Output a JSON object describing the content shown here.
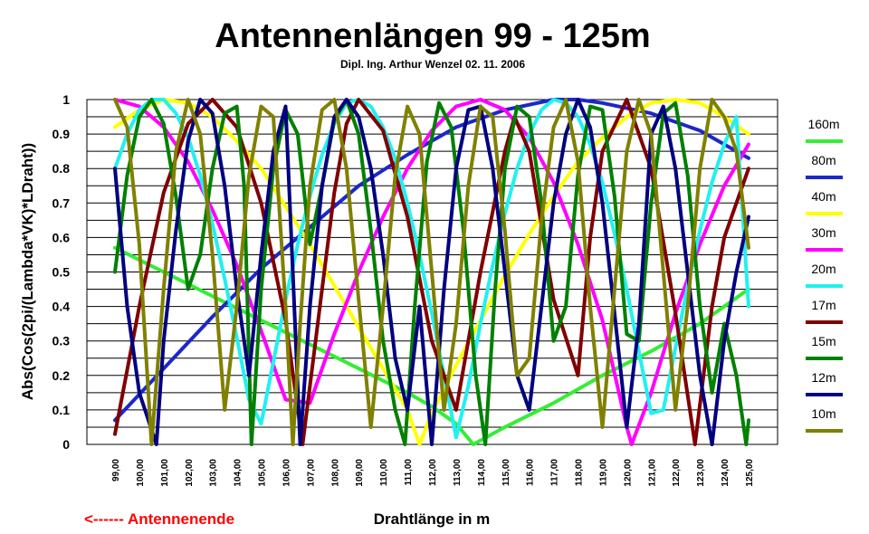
{
  "chart_data": {
    "type": "line",
    "title": "Antennenlängen 99 - 125m",
    "subtitle": "Dipl. Ing. Arthur Wenzel  02. 11. 2006",
    "xlabel": "Drahtlänge in m",
    "ylabel": "Abs(Cos(2pi/(Lambda*VK)*LDraht))",
    "annotation": "<------  Antennenende",
    "annotation_color": "#ff0000",
    "xlim": [
      99,
      125
    ],
    "ylim": [
      0,
      1
    ],
    "grid": true,
    "legend_position": "right",
    "x_tick_labels": [
      "99,00",
      "100,00",
      "101,00",
      "102,00",
      "103,00",
      "104,00",
      "105,00",
      "106,00",
      "107,00",
      "108,00",
      "109,00",
      "110,00",
      "111,00",
      "112,00",
      "113,00",
      "114,00",
      "115,00",
      "116,00",
      "117,00",
      "118,00",
      "119,00",
      "120,00",
      "121,00",
      "122,00",
      "123,00",
      "124,00",
      "125,00"
    ],
    "y_tick_labels": [
      "0",
      "0.1",
      "0.2",
      "0.3",
      "0.4",
      "0.5",
      "0.6",
      "0.7",
      "0.8",
      "0.9",
      "1"
    ],
    "series": [
      {
        "name": "160m",
        "color": "#33ee33",
        "x": [
          99,
          101,
          103,
          105,
          107,
          109,
          111,
          112,
          113,
          113.7,
          115,
          117,
          119,
          121,
          123,
          125
        ],
        "y": [
          0.57,
          0.5,
          0.43,
          0.36,
          0.29,
          0.22,
          0.15,
          0.11,
          0.06,
          0.0,
          0.05,
          0.12,
          0.2,
          0.27,
          0.35,
          0.45
        ]
      },
      {
        "name": "80m",
        "color": "#1c28c8",
        "x": [
          99,
          101,
          103,
          105,
          107,
          109,
          111,
          113,
          115,
          117,
          118,
          119,
          121,
          123,
          125
        ],
        "y": [
          0.07,
          0.22,
          0.37,
          0.51,
          0.63,
          0.75,
          0.84,
          0.92,
          0.97,
          1.0,
          1.0,
          0.99,
          0.96,
          0.91,
          0.83
        ]
      },
      {
        "name": "40m",
        "color": "#ffff00",
        "x": [
          99,
          100,
          101,
          102,
          103,
          104,
          105,
          106,
          107,
          108,
          109,
          110,
          111,
          111.5,
          112,
          113,
          114,
          115,
          116,
          117,
          118,
          119,
          120,
          121,
          122,
          123,
          124,
          125
        ],
        "y": [
          0.92,
          0.97,
          1.0,
          0.99,
          0.95,
          0.88,
          0.8,
          0.69,
          0.58,
          0.46,
          0.34,
          0.22,
          0.1,
          0.0,
          0.09,
          0.23,
          0.36,
          0.49,
          0.61,
          0.72,
          0.82,
          0.89,
          0.95,
          0.99,
          1.0,
          0.99,
          0.95,
          0.9
        ]
      },
      {
        "name": "30m",
        "color": "#ff00ff",
        "x": [
          99,
          100,
          101,
          102,
          103,
          104,
          105,
          106,
          107,
          108,
          109,
          110,
          111,
          112,
          113,
          114,
          115,
          116,
          117,
          118,
          119,
          120,
          120.2,
          121,
          122,
          123,
          124,
          125
        ],
        "y": [
          1.0,
          0.98,
          0.92,
          0.82,
          0.68,
          0.52,
          0.33,
          0.13,
          0.12,
          0.32,
          0.5,
          0.66,
          0.8,
          0.91,
          0.98,
          1.0,
          0.97,
          0.89,
          0.76,
          0.58,
          0.36,
          0.05,
          0.0,
          0.15,
          0.38,
          0.58,
          0.75,
          0.87
        ]
      },
      {
        "name": "20m",
        "color": "#22f0f0",
        "x": [
          99,
          99.5,
          100,
          100.5,
          101,
          101.5,
          102,
          102.5,
          103,
          103.5,
          104,
          104.5,
          105,
          105.5,
          106,
          106.5,
          107,
          107.5,
          108,
          108.5,
          109,
          109.5,
          110,
          110.5,
          111,
          111.5,
          112,
          112.5,
          113,
          113.5,
          114,
          114.5,
          115,
          115.5,
          116,
          116.5,
          117,
          117.5,
          118,
          118.5,
          119,
          119.5,
          120,
          120.5,
          121,
          121.5,
          122,
          122.5,
          123,
          123.5,
          124,
          124.5,
          125
        ],
        "y": [
          0.8,
          0.9,
          0.97,
          1.0,
          1.0,
          0.96,
          0.89,
          0.78,
          0.64,
          0.48,
          0.31,
          0.13,
          0.06,
          0.24,
          0.42,
          0.58,
          0.72,
          0.84,
          0.93,
          0.99,
          1.0,
          0.98,
          0.92,
          0.83,
          0.7,
          0.55,
          0.38,
          0.2,
          0.02,
          0.17,
          0.35,
          0.52,
          0.67,
          0.8,
          0.9,
          0.97,
          1.0,
          0.99,
          0.95,
          0.87,
          0.76,
          0.61,
          0.45,
          0.27,
          0.09,
          0.1,
          0.28,
          0.46,
          0.62,
          0.76,
          0.87,
          0.95,
          0.4
        ]
      },
      {
        "name": "17m",
        "color": "#800000",
        "x": [
          99,
          100,
          101,
          102,
          103,
          104,
          105,
          106,
          106.7,
          107.5,
          108,
          108.5,
          109,
          110,
          111,
          112,
          113,
          114,
          115,
          115.4,
          116,
          117,
          118,
          118.5,
          119,
          120,
          121,
          122,
          122.8,
          123.5,
          124,
          125
        ],
        "y": [
          0.03,
          0.4,
          0.73,
          0.93,
          1.0,
          0.92,
          0.7,
          0.36,
          0.0,
          0.45,
          0.73,
          0.93,
          1.0,
          0.91,
          0.66,
          0.3,
          0.1,
          0.5,
          0.85,
          0.95,
          0.85,
          0.42,
          0.2,
          0.6,
          0.85,
          1.0,
          0.8,
          0.38,
          0.0,
          0.4,
          0.6,
          0.8
        ]
      },
      {
        "name": "15m",
        "color": "#008000",
        "x": [
          99,
          99.5,
          100,
          100.5,
          101,
          101.5,
          102,
          102.5,
          103,
          103.5,
          104,
          104.3,
          104.6,
          105,
          105.5,
          106,
          106.5,
          107,
          107.5,
          108,
          108.5,
          109,
          109.5,
          110,
          110.5,
          110.9,
          111.3,
          111.8,
          112.3,
          112.8,
          113.3,
          113.8,
          114.2,
          114.6,
          115,
          115.5,
          116,
          116.5,
          117,
          117.5,
          118,
          118.5,
          119,
          119.5,
          120,
          120.5,
          121,
          121.5,
          122,
          122.5,
          123,
          123.5,
          124,
          124.5,
          124.9,
          125
        ],
        "y": [
          0.5,
          0.78,
          0.95,
          1.0,
          0.93,
          0.72,
          0.45,
          0.55,
          0.8,
          0.96,
          0.98,
          0.75,
          0.0,
          0.45,
          0.8,
          0.97,
          0.9,
          0.58,
          0.75,
          0.94,
          1.0,
          0.9,
          0.62,
          0.3,
          0.1,
          0.0,
          0.4,
          0.82,
          0.99,
          0.92,
          0.62,
          0.2,
          0.0,
          0.45,
          0.8,
          0.98,
          0.95,
          0.7,
          0.3,
          0.4,
          0.78,
          0.98,
          0.97,
          0.72,
          0.32,
          0.3,
          0.7,
          0.96,
          0.99,
          0.78,
          0.4,
          0.15,
          0.35,
          0.2,
          0.0,
          0.07
        ]
      },
      {
        "name": "12m",
        "color": "#000080",
        "x": [
          99,
          99.5,
          100,
          100.7,
          101,
          101.5,
          102,
          102.5,
          103,
          103.5,
          104,
          104.5,
          105,
          105.5,
          106,
          106.3,
          106.6,
          107,
          107.5,
          108,
          108.5,
          109,
          109.5,
          110,
          110.5,
          111,
          111.5,
          112,
          112.5,
          113,
          113.5,
          114,
          114.5,
          115,
          115.5,
          116,
          116.5,
          117,
          117.5,
          118,
          118.5,
          119,
          119.5,
          120,
          120.5,
          121,
          121.5,
          122,
          122.5,
          123,
          123.5,
          124,
          124.5,
          125
        ],
        "y": [
          0.8,
          0.4,
          0.15,
          0.0,
          0.3,
          0.62,
          0.88,
          1.0,
          0.96,
          0.75,
          0.45,
          0.2,
          0.55,
          0.85,
          0.98,
          0.5,
          0.0,
          0.4,
          0.75,
          0.95,
          1.0,
          0.95,
          0.8,
          0.55,
          0.25,
          0.1,
          0.4,
          0.0,
          0.45,
          0.8,
          0.97,
          0.98,
          0.8,
          0.5,
          0.2,
          0.1,
          0.4,
          0.7,
          0.9,
          1.0,
          0.92,
          0.7,
          0.38,
          0.05,
          0.35,
          0.9,
          0.98,
          0.8,
          0.5,
          0.2,
          0.0,
          0.3,
          0.5,
          0.66
        ]
      },
      {
        "name": "10m",
        "color": "#808000",
        "x": [
          99,
          99.5,
          100,
          100.5,
          101,
          101.5,
          102,
          102.5,
          103,
          103.5,
          104,
          104.5,
          105,
          105.5,
          106,
          106.3,
          106.6,
          107,
          107.5,
          108,
          108.5,
          109,
          109.5,
          110,
          110.5,
          111,
          111.5,
          112,
          112.5,
          113,
          113.5,
          114,
          114.5,
          115,
          115.5,
          116,
          116.5,
          117,
          117.5,
          118,
          118.5,
          119,
          119.5,
          120,
          120.5,
          121,
          121.5,
          122,
          122.5,
          123,
          123.5,
          124,
          124.5,
          125
        ],
        "y": [
          1.0,
          0.92,
          0.58,
          0.0,
          0.45,
          0.85,
          1.0,
          0.9,
          0.55,
          0.1,
          0.4,
          0.78,
          0.98,
          0.95,
          0.4,
          0.0,
          0.35,
          0.75,
          0.97,
          1.0,
          0.8,
          0.42,
          0.05,
          0.4,
          0.78,
          0.98,
          0.9,
          0.5,
          0.1,
          0.35,
          0.75,
          0.98,
          0.95,
          0.62,
          0.2,
          0.25,
          0.65,
          0.92,
          1.0,
          0.82,
          0.4,
          0.05,
          0.45,
          0.85,
          1.0,
          0.9,
          0.5,
          0.1,
          0.4,
          0.8,
          1.0,
          0.95,
          0.85,
          0.57
        ]
      }
    ]
  }
}
